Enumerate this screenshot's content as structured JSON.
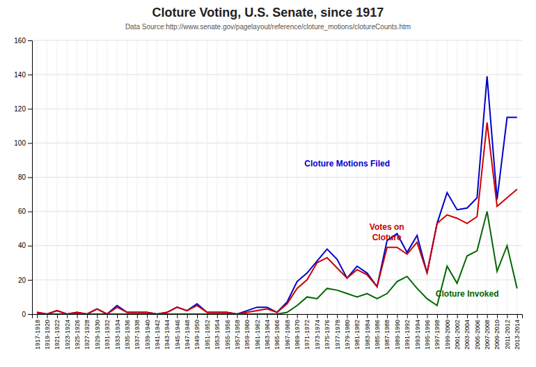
{
  "chart_data": {
    "type": "line",
    "title": "Cloture Voting, U.S. Senate, since 1917",
    "subtitle": "Data Source:http://www.senate.gov/pagelayout/reference/cloture_motions/clotureCounts.htm",
    "categories": [
      "1917-1918",
      "1919-1920",
      "1921-1922",
      "1923-1924",
      "1925-1926",
      "1927-1928",
      "1929-1930",
      "1931-1932",
      "1933-1934",
      "1935-1936",
      "1937-1938",
      "1939-1940",
      "1941-1942",
      "1943-1944",
      "1945-1946",
      "1947-1948",
      "1949-1950",
      "1951-1952",
      "1953-1954",
      "1955-1956",
      "1957-1958",
      "1959-1960",
      "1961-1962",
      "1963-1964",
      "1965-1966",
      "1967-1968",
      "1969-1970",
      "1971-1972",
      "1973-1974",
      "1975-1976",
      "1977-1978",
      "1979-1980",
      "1981-1982",
      "1983-1984",
      "1985-1986",
      "1987-1988",
      "1989-1990",
      "1991-1992",
      "1993-1994",
      "1995-1996",
      "1997-1998",
      "1999-2000",
      "2001-2002",
      "2003-2004",
      "2005-2006",
      "2007-2008",
      "2009-2010",
      "2011-2012",
      "2013-2014"
    ],
    "series": [
      {
        "name": "Cloture Motions Filed",
        "color": "#0000cc",
        "values": [
          1,
          0,
          2,
          0,
          1,
          0,
          3,
          0,
          5,
          1,
          1,
          1,
          0,
          1,
          4,
          2,
          6,
          1,
          1,
          1,
          0,
          2,
          4,
          4,
          1,
          7,
          19,
          24,
          31,
          38,
          32,
          21,
          28,
          24,
          16,
          43,
          47,
          36,
          46,
          24,
          53,
          71,
          61,
          62,
          68,
          139,
          67,
          115,
          115
        ]
      },
      {
        "name": "Votes on\nCloture",
        "color": "#cc0000",
        "values": [
          1,
          0,
          2,
          0,
          1,
          0,
          3,
          0,
          4,
          1,
          1,
          1,
          0,
          1,
          4,
          2,
          5,
          1,
          1,
          1,
          0,
          1,
          2,
          3,
          1,
          6,
          15,
          20,
          30,
          33,
          27,
          21,
          26,
          23,
          16,
          39,
          39,
          35,
          42,
          24,
          53,
          58,
          56,
          53,
          57,
          112,
          63,
          68,
          73
        ]
      },
      {
        "name": "Cloture Invoked",
        "color": "#006600",
        "values": [
          0,
          0,
          0,
          0,
          0,
          0,
          0,
          0,
          0,
          0,
          0,
          0,
          0,
          0,
          0,
          0,
          0,
          0,
          0,
          0,
          0,
          0,
          0,
          0,
          0,
          1,
          5,
          10,
          9,
          15,
          14,
          12,
          10,
          12,
          9,
          12,
          19,
          22,
          15,
          9,
          5,
          28,
          18,
          34,
          37,
          60,
          25,
          40,
          15
        ]
      }
    ],
    "ylim": [
      0,
      160
    ],
    "yticks": [
      0,
      20,
      40,
      60,
      80,
      100,
      120,
      140,
      160
    ],
    "grid": true
  }
}
